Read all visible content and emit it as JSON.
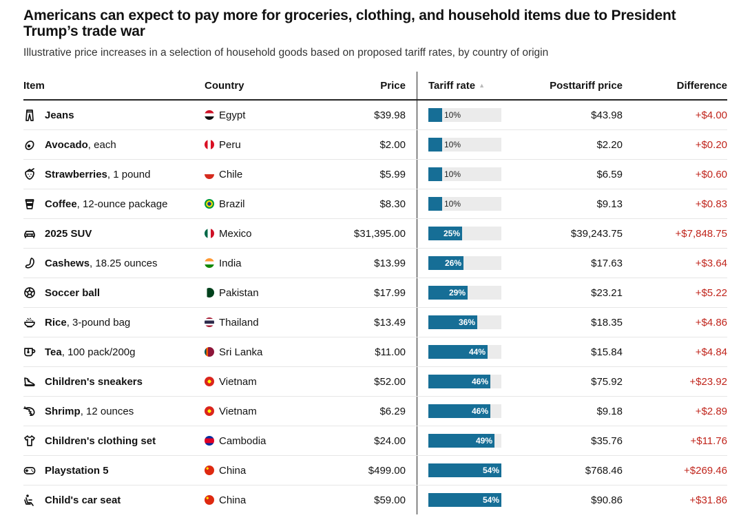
{
  "title": "Americans can expect to pay more for groceries, clothing, and household items due to President Trump’s trade war",
  "subtitle": "Illustrative price increases in a selection of household goods based on proposed tariff rates, by country of origin",
  "columns": {
    "item": "Item",
    "country": "Country",
    "price": "Price",
    "tariff": "Tariff rate",
    "posttariff": "Posttariff price",
    "difference": "Difference"
  },
  "colors": {
    "bar": "#166e96",
    "track": "#ebebeb",
    "difference": "#c0241b"
  },
  "chart_data": {
    "type": "table",
    "sorted_by": "Tariff rate (ascending)",
    "columns": [
      "Item",
      "Country",
      "Price",
      "Tariff rate",
      "Posttariff price",
      "Difference"
    ],
    "rows": [
      {
        "icon": "jeans-icon",
        "name": "Jeans",
        "detail": "",
        "country": "Egypt",
        "flag": "egypt",
        "price": "$39.98",
        "tariff": 10,
        "tariff_label": "10%",
        "posttariff": "$43.98",
        "difference": "+$4.00"
      },
      {
        "icon": "avocado-icon",
        "name": "Avocado",
        "detail": ", each",
        "country": "Peru",
        "flag": "peru",
        "price": "$2.00",
        "tariff": 10,
        "tariff_label": "10%",
        "posttariff": "$2.20",
        "difference": "+$0.20"
      },
      {
        "icon": "strawberry-icon",
        "name": "Strawberries",
        "detail": ", 1 pound",
        "country": "Chile",
        "flag": "chile",
        "price": "$5.99",
        "tariff": 10,
        "tariff_label": "10%",
        "posttariff": "$6.59",
        "difference": "+$0.60"
      },
      {
        "icon": "coffee-cup-icon",
        "name": "Coffee",
        "detail": ", 12-ounce package",
        "country": "Brazil",
        "flag": "brazil",
        "price": "$8.30",
        "tariff": 10,
        "tariff_label": "10%",
        "posttariff": "$9.13",
        "difference": "+$0.83"
      },
      {
        "icon": "car-icon",
        "name": "2025 SUV",
        "detail": "",
        "country": "Mexico",
        "flag": "mexico",
        "price": "$31,395.00",
        "tariff": 25,
        "tariff_label": "25%",
        "posttariff": "$39,243.75",
        "difference": "+$7,848.75"
      },
      {
        "icon": "cashew-icon",
        "name": "Cashews",
        "detail": ", 18.25 ounces",
        "country": "India",
        "flag": "india",
        "price": "$13.99",
        "tariff": 26,
        "tariff_label": "26%",
        "posttariff": "$17.63",
        "difference": "+$3.64"
      },
      {
        "icon": "soccer-ball-icon",
        "name": "Soccer ball",
        "detail": "",
        "country": "Pakistan",
        "flag": "pakistan",
        "price": "$17.99",
        "tariff": 29,
        "tariff_label": "29%",
        "posttariff": "$23.21",
        "difference": "+$5.22"
      },
      {
        "icon": "rice-bowl-icon",
        "name": "Rice",
        "detail": ", 3-pound bag",
        "country": "Thailand",
        "flag": "thailand",
        "price": "$13.49",
        "tariff": 36,
        "tariff_label": "36%",
        "posttariff": "$18.35",
        "difference": "+$4.86"
      },
      {
        "icon": "tea-mug-icon",
        "name": "Tea",
        "detail": ", 100 pack/200g",
        "country": "Sri Lanka",
        "flag": "srilanka",
        "price": "$11.00",
        "tariff": 44,
        "tariff_label": "44%",
        "posttariff": "$15.84",
        "difference": "+$4.84"
      },
      {
        "icon": "sneaker-icon",
        "name": "Children's sneakers",
        "detail": "",
        "country": "Vietnam",
        "flag": "vietnam",
        "price": "$52.00",
        "tariff": 46,
        "tariff_label": "46%",
        "posttariff": "$75.92",
        "difference": "+$23.92"
      },
      {
        "icon": "shrimp-icon",
        "name": "Shrimp",
        "detail": ", 12 ounces",
        "country": "Vietnam",
        "flag": "vietnam",
        "price": "$6.29",
        "tariff": 46,
        "tariff_label": "46%",
        "posttariff": "$9.18",
        "difference": "+$2.89"
      },
      {
        "icon": "tshirt-icon",
        "name": "Children's clothing set",
        "detail": "",
        "country": "Cambodia",
        "flag": "cambodia",
        "price": "$24.00",
        "tariff": 49,
        "tariff_label": "49%",
        "posttariff": "$35.76",
        "difference": "+$11.76"
      },
      {
        "icon": "gamepad-icon",
        "name": "Playstation 5",
        "detail": "",
        "country": "China",
        "flag": "china",
        "price": "$499.00",
        "tariff": 54,
        "tariff_label": "54%",
        "posttariff": "$768.46",
        "difference": "+$269.46"
      },
      {
        "icon": "car-seat-icon",
        "name": "Child's car seat",
        "detail": "",
        "country": "China",
        "flag": "china",
        "price": "$59.00",
        "tariff": 54,
        "tariff_label": "54%",
        "posttariff": "$90.86",
        "difference": "+$31.86"
      }
    ],
    "bar_max": 54
  }
}
